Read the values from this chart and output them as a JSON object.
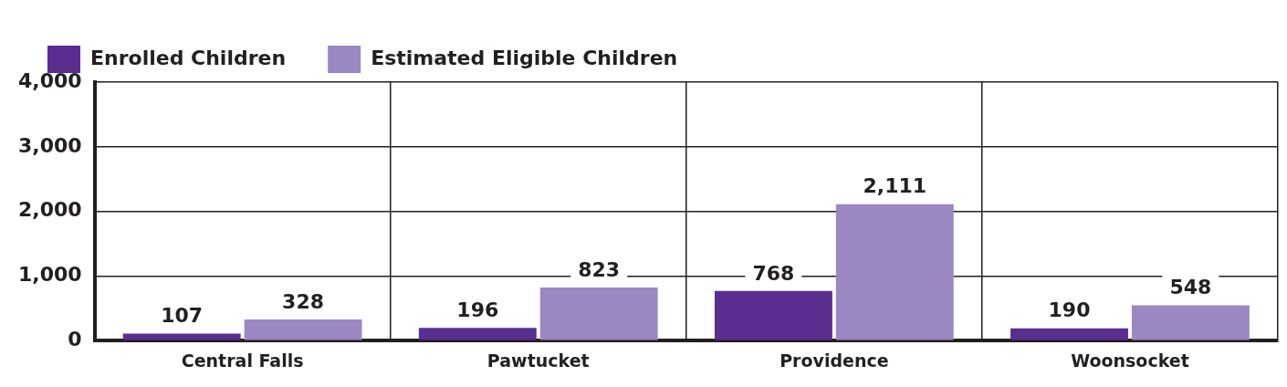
{
  "chart_data": {
    "type": "bar",
    "categories": [
      "Central Falls",
      "Pawtucket",
      "Providence",
      "Woonsocket"
    ],
    "series": [
      {
        "name": "Enrolled Children",
        "color": "#5a2d91",
        "values": [
          107,
          196,
          768,
          190
        ],
        "value_labels": [
          "107",
          "196",
          "768",
          "190"
        ]
      },
      {
        "name": "Estimated Eligible Children",
        "color": "#9b87c1",
        "values": [
          328,
          823,
          2111,
          548
        ],
        "value_labels": [
          "328",
          "823",
          "2,111",
          "548"
        ]
      }
    ],
    "ylim": [
      0,
      4000
    ],
    "yticks": [
      0,
      {
        "value": 1000,
        "label": "1,000"
      },
      {
        "value": 2000,
        "label": "2,000"
      },
      {
        "value": 3000,
        "label": "3,000"
      },
      {
        "value": 4000,
        "label": "4,000"
      }
    ],
    "grid": true,
    "legend": "top left"
  }
}
